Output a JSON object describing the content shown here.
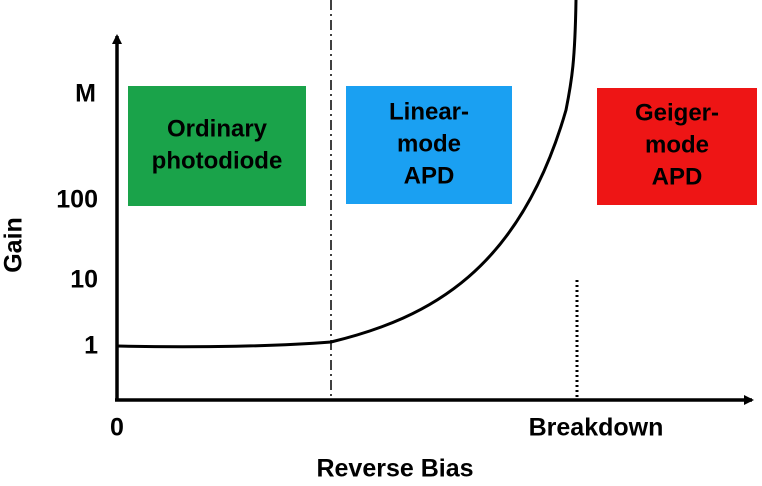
{
  "axes": {
    "y_label": "Gain",
    "x_label": "Reverse Bias",
    "y_ticks": [
      "M",
      "100",
      "10",
      "1"
    ],
    "x_ticks": [
      "0",
      "Breakdown"
    ]
  },
  "regions": [
    {
      "lines": [
        "Ordinary",
        "photodiode"
      ]
    },
    {
      "lines": [
        "Linear-",
        "mode",
        "APD"
      ]
    },
    {
      "lines": [
        "Geiger-",
        "mode",
        "APD"
      ]
    }
  ]
}
